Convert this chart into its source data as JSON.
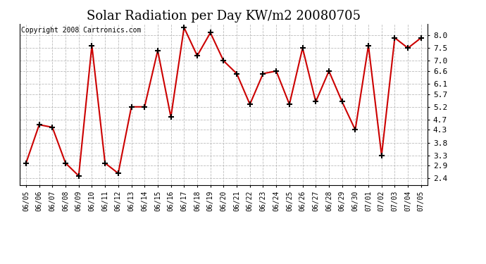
{
  "title": "Solar Radiation per Day KW/m2 20080705",
  "copyright": "Copyright 2008 Cartronics.com",
  "dates": [
    "06/05",
    "06/06",
    "06/07",
    "06/08",
    "06/09",
    "06/10",
    "06/11",
    "06/12",
    "06/13",
    "06/14",
    "06/15",
    "06/16",
    "06/17",
    "06/18",
    "06/19",
    "06/20",
    "06/21",
    "06/22",
    "06/23",
    "06/24",
    "06/25",
    "06/26",
    "06/27",
    "06/28",
    "06/29",
    "06/30",
    "07/01",
    "07/02",
    "07/03",
    "07/04",
    "07/05"
  ],
  "values": [
    3.0,
    4.5,
    4.4,
    3.0,
    2.5,
    7.6,
    3.0,
    2.6,
    5.2,
    5.2,
    7.4,
    4.8,
    8.3,
    7.2,
    8.1,
    7.0,
    6.5,
    5.3,
    6.5,
    6.6,
    5.3,
    7.5,
    5.4,
    6.6,
    5.4,
    4.3,
    7.6,
    3.3,
    7.9,
    7.5,
    7.9
  ],
  "line_color": "#cc0000",
  "bg_color": "#ffffff",
  "grid_color": "#bbbbbb",
  "yticks": [
    2.4,
    2.9,
    3.3,
    3.8,
    4.3,
    4.7,
    5.2,
    5.7,
    6.1,
    6.6,
    7.0,
    7.5,
    8.0
  ],
  "ylim": [
    2.15,
    8.45
  ],
  "title_fontsize": 13,
  "copyright_fontsize": 7,
  "tick_fontsize": 7,
  "ytick_fontsize": 8
}
